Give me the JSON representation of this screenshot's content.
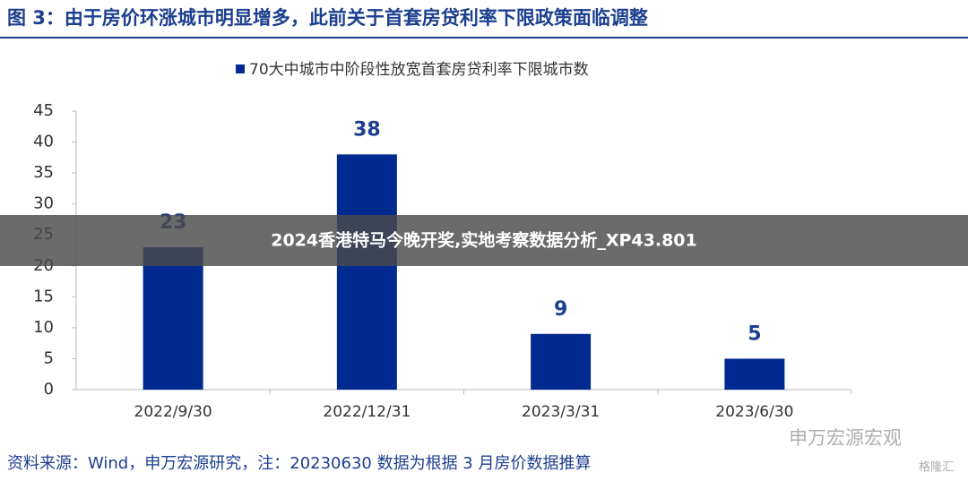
{
  "header": {
    "title": "图 3：由于房价环涨城市明显增多，此前关于首套房贷利率下限政策面临调整"
  },
  "chart_data": {
    "type": "bar",
    "series": [
      {
        "name": "70大中城市中阶段性放宽首套房贷利率下限城市数",
        "color": "#002a8f",
        "values": [
          23,
          38,
          9,
          5
        ]
      }
    ],
    "categories": [
      "2022/9/30",
      "2022/12/31",
      "2023/3/31",
      "2023/6/30"
    ],
    "ylim": [
      0,
      45
    ],
    "yticks": [
      0,
      5,
      10,
      15,
      20,
      25,
      30,
      35,
      40,
      45
    ],
    "legend": "top"
  },
  "source": "资料来源：Wind，申万宏源研究，注：20230630 数据为根据 3 月房价数据推算",
  "watermark": "申万宏源宏观",
  "corner_mark": "格隆汇",
  "banner": "2024香港特马今晚开奖,实地考察数据分析_XP43.801"
}
